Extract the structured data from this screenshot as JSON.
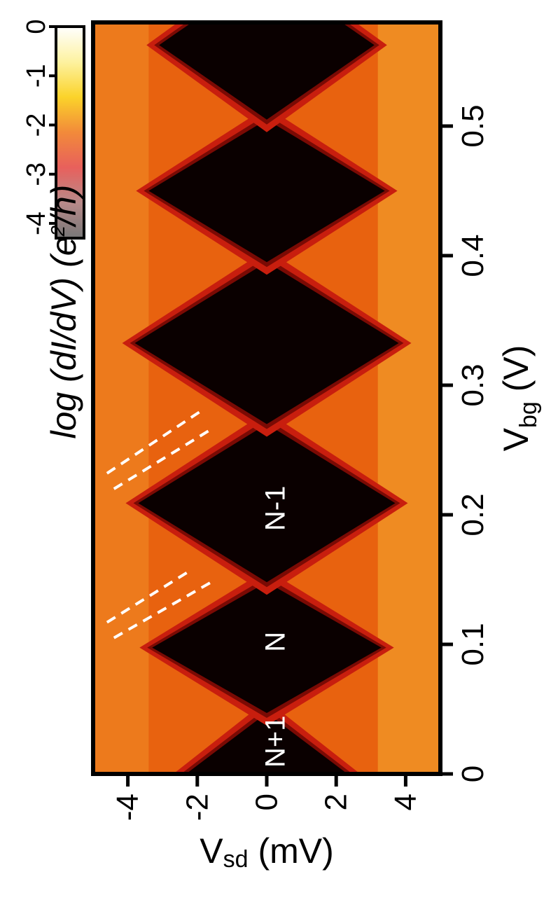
{
  "chart_data": {
    "type": "heatmap",
    "title": "",
    "xlabel": "V",
    "xlabel_sub": "sd",
    "xlabel_unit": " (mV)",
    "ylabel": "V",
    "ylabel_sub": "bg",
    "ylabel_unit": " (V)",
    "xlim": [
      -5,
      5
    ],
    "ylim": [
      0,
      0.58
    ],
    "x_ticks": [
      {
        "value": -4,
        "label": "-4"
      },
      {
        "value": -2,
        "label": "-2"
      },
      {
        "value": 0,
        "label": "0"
      },
      {
        "value": 2,
        "label": "2"
      },
      {
        "value": 4,
        "label": "4"
      }
    ],
    "y_ticks": [
      {
        "value": 0,
        "label": "0"
      },
      {
        "value": 0.1,
        "label": "0.1"
      },
      {
        "value": 0.2,
        "label": "0.2"
      },
      {
        "value": 0.3,
        "label": "0.3"
      },
      {
        "value": 0.4,
        "label": "0.4"
      },
      {
        "value": 0.5,
        "label": "0.5"
      }
    ],
    "colorbar": {
      "label_prefix": "log (dI/dV) (e",
      "label_sup": "2",
      "label_suffix": "/h)",
      "range": [
        -4.3,
        0
      ],
      "ticks": [
        {
          "value": 0,
          "label": "0"
        },
        {
          "value": -1,
          "label": "-1"
        },
        {
          "value": -2,
          "label": "-2"
        },
        {
          "value": -3,
          "label": "-3"
        },
        {
          "value": -4,
          "label": "-4"
        }
      ],
      "colors": [
        "#777777",
        "#b88a8a",
        "#e8605c",
        "#f28a3a",
        "#fbd32a",
        "#fdf2a0",
        "#ffffff"
      ]
    },
    "diamonds": [
      {
        "vbg_low": -0.05,
        "vbg_high": 0.047,
        "half_width_mV": 2.4
      },
      {
        "vbg_low": 0.047,
        "vbg_high": 0.148,
        "half_width_mV": 3.3
      },
      {
        "vbg_low": 0.148,
        "vbg_high": 0.27,
        "half_width_mV": 3.7
      },
      {
        "vbg_low": 0.27,
        "vbg_high": 0.395,
        "half_width_mV": 3.8
      },
      {
        "vbg_low": 0.395,
        "vbg_high": 0.505,
        "half_width_mV": 3.4
      },
      {
        "vbg_low": 0.505,
        "vbg_high": 0.62,
        "half_width_mV": 3.1
      }
    ],
    "region_labels": [
      {
        "text": "N+1",
        "vsd": 0.25,
        "vbg": 0.025
      },
      {
        "text": "N",
        "vsd": 0.25,
        "vbg": 0.102
      },
      {
        "text": "N-1",
        "vsd": 0.25,
        "vbg": 0.205
      }
    ],
    "annotation_lines": [
      {
        "vsd": [
          -4.6,
          -1.9
        ],
        "vbg": [
          0.232,
          0.28
        ]
      },
      {
        "vsd": [
          -4.4,
          -1.6
        ],
        "vbg": [
          0.22,
          0.266
        ]
      },
      {
        "vsd": [
          -4.6,
          -2.2
        ],
        "vbg": [
          0.117,
          0.157
        ]
      },
      {
        "vsd": [
          -4.4,
          -1.6
        ],
        "vbg": [
          0.105,
          0.148
        ]
      }
    ]
  }
}
